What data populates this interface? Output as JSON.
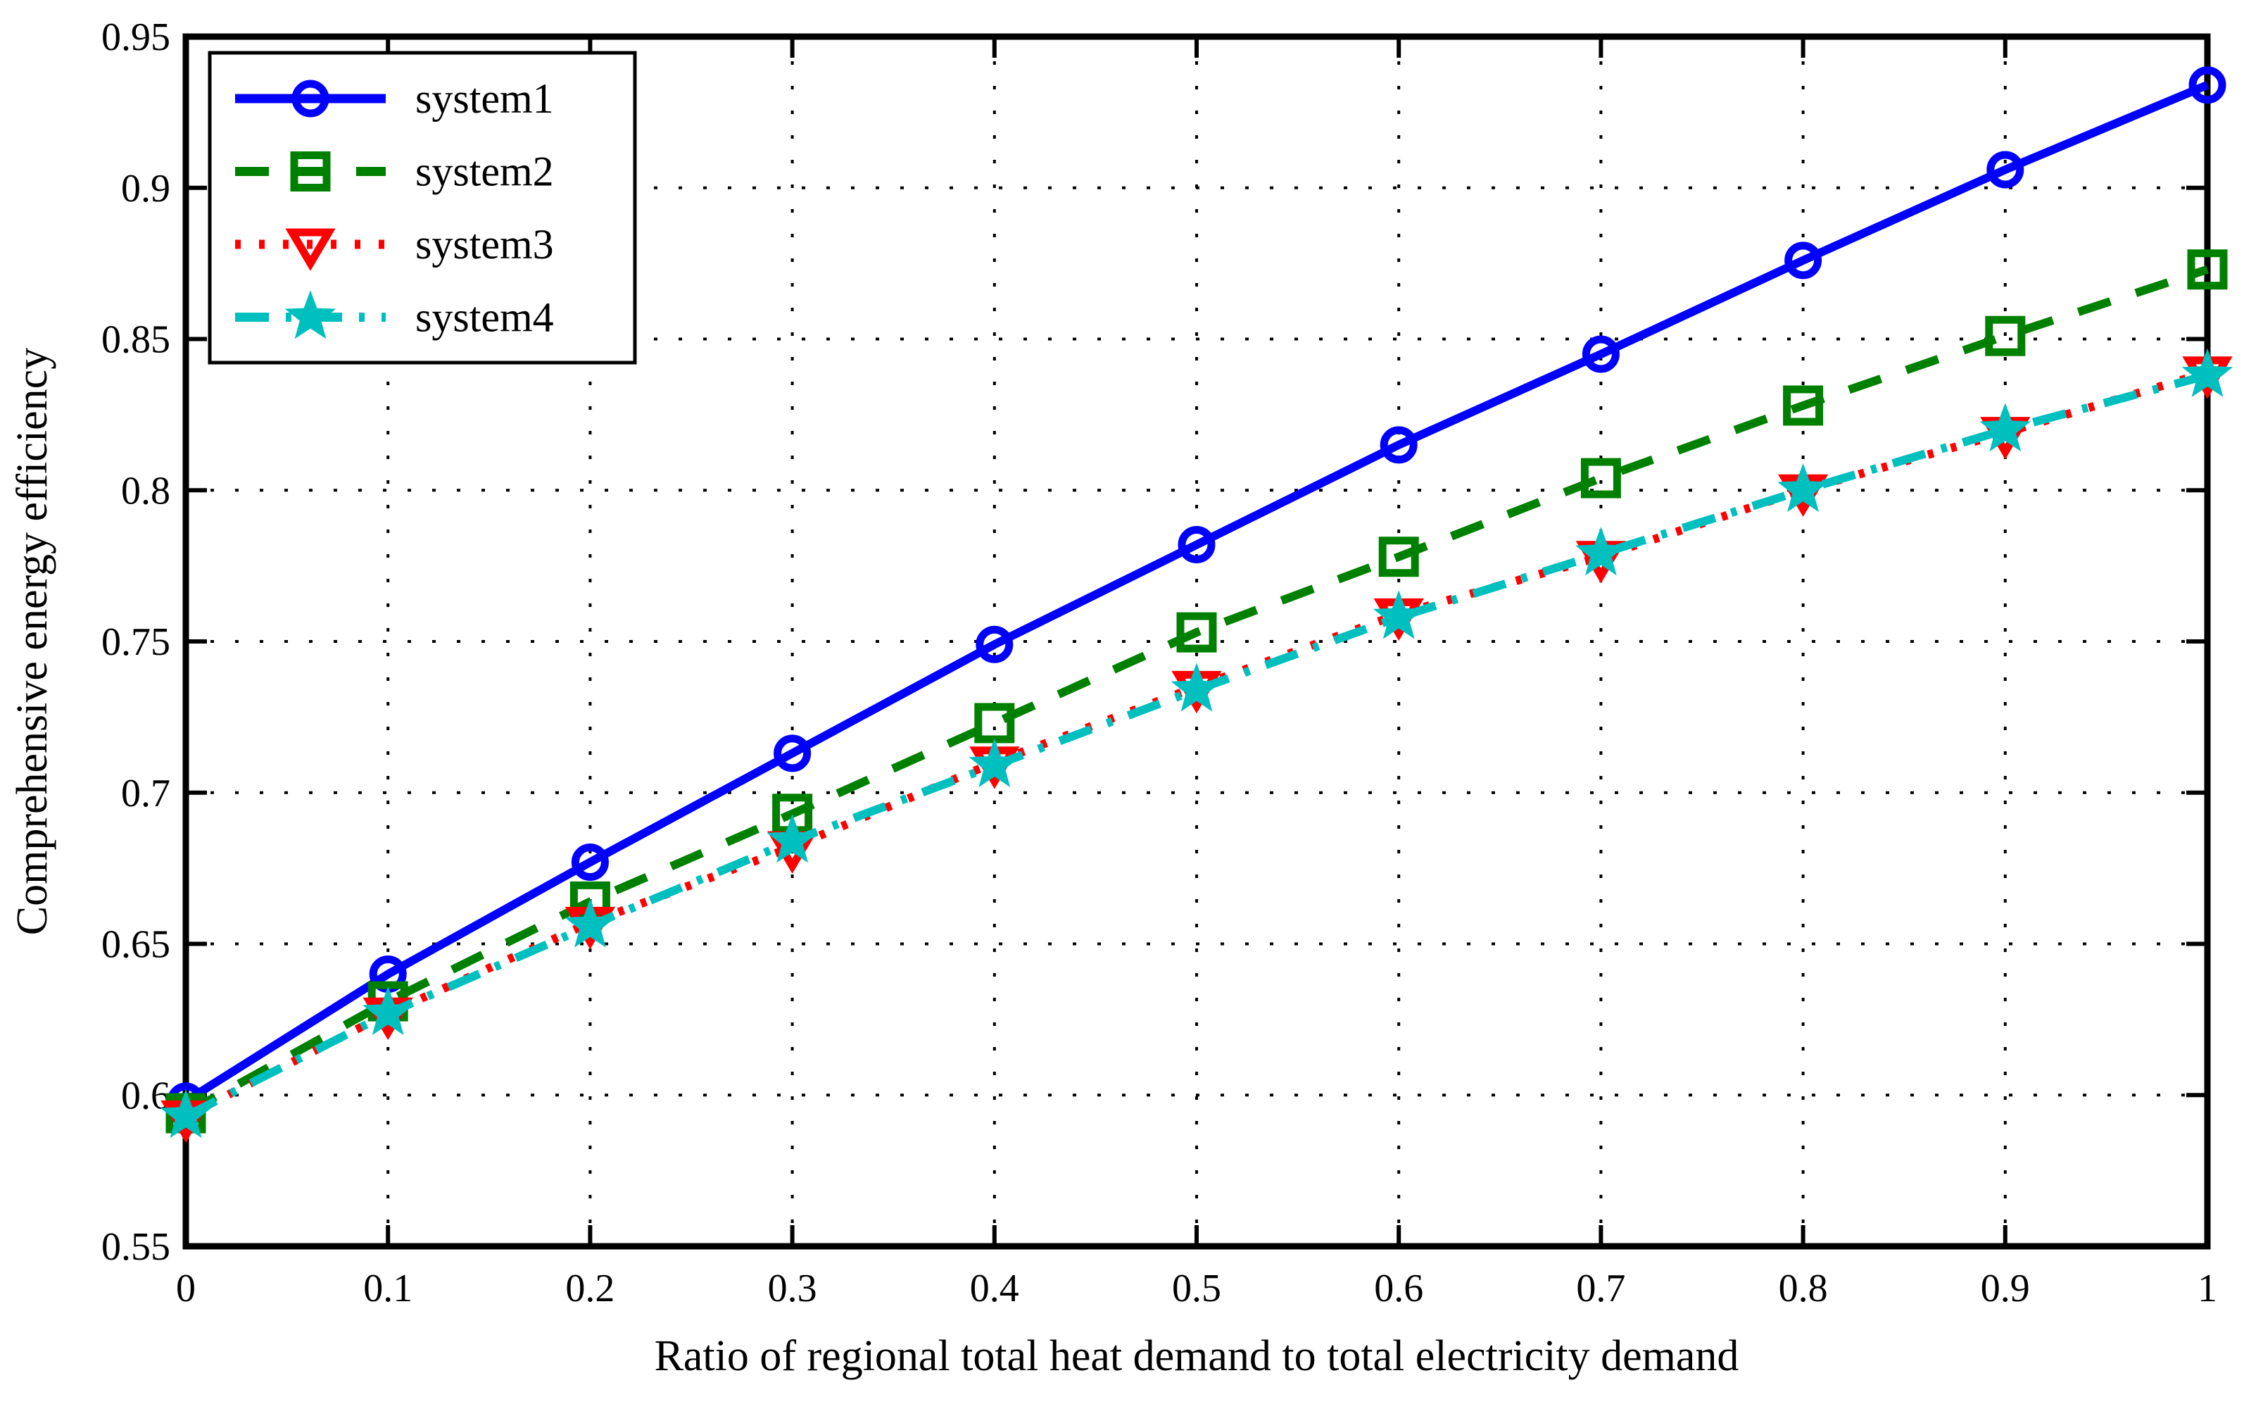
{
  "figure": {
    "background": "#ffffff"
  },
  "chart_data": {
    "type": "line",
    "title": "",
    "xlabel": "Ratio of regional total heat demand to total electricity demand",
    "ylabel": "Comprehensive energy efficiency",
    "xlim": [
      0,
      1
    ],
    "ylim": [
      0.55,
      0.95
    ],
    "xticks": [
      0,
      0.1,
      0.2,
      0.3,
      0.4,
      0.5,
      0.6,
      0.7,
      0.8,
      0.9,
      1
    ],
    "xtick_labels": [
      "0",
      "0.1",
      "0.2",
      "0.3",
      "0.4",
      "0.5",
      "0.6",
      "0.7",
      "0.8",
      "0.9",
      "1"
    ],
    "yticks": [
      0.55,
      0.6,
      0.65,
      0.7,
      0.75,
      0.8,
      0.85,
      0.9,
      0.95
    ],
    "ytick_labels": [
      "0.55",
      "0.6",
      "0.65",
      "0.7",
      "0.75",
      "0.8",
      "0.85",
      "0.9",
      "0.95"
    ],
    "grid": "dotted",
    "grid_color": "#000000",
    "axes_color": "#000000",
    "legend_position": "top-left",
    "x": [
      0,
      0.1,
      0.2,
      0.3,
      0.4,
      0.5,
      0.6,
      0.7,
      0.8,
      0.9,
      1.0
    ],
    "series": [
      {
        "name": "system1",
        "color": "#0000ff",
        "linestyle": "solid",
        "marker": "circle",
        "values": [
          0.598,
          0.64,
          0.677,
          0.713,
          0.749,
          0.782,
          0.815,
          0.845,
          0.876,
          0.906,
          0.934
        ]
      },
      {
        "name": "system2",
        "color": "#008000",
        "linestyle": "dashed",
        "marker": "square",
        "values": [
          0.594,
          0.631,
          0.664,
          0.693,
          0.723,
          0.753,
          0.778,
          0.804,
          0.828,
          0.851,
          0.873
        ]
      },
      {
        "name": "system3",
        "color": "#ff0000",
        "linestyle": "dotted",
        "marker": "triangle-down",
        "values": [
          0.593,
          0.627,
          0.657,
          0.682,
          0.71,
          0.735,
          0.759,
          0.778,
          0.8,
          0.819,
          0.839
        ]
      },
      {
        "name": "system4",
        "color": "#00bfbf",
        "linestyle": "dashdot",
        "marker": "star",
        "values": [
          0.593,
          0.627,
          0.656,
          0.684,
          0.709,
          0.734,
          0.758,
          0.779,
          0.8,
          0.82,
          0.838
        ]
      }
    ]
  }
}
